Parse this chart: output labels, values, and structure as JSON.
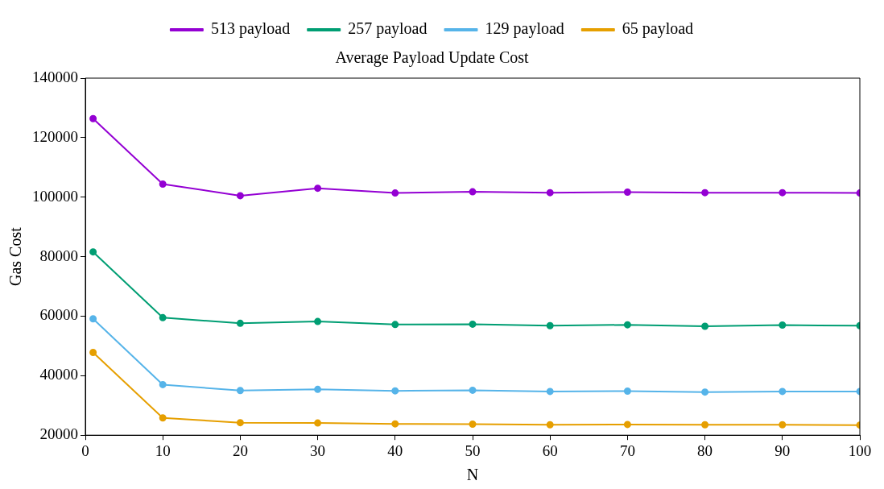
{
  "chart_data": {
    "type": "line",
    "title": "Average Payload Update Cost",
    "xlabel": "N",
    "ylabel": "Gas Cost",
    "x": [
      1,
      10,
      20,
      30,
      40,
      50,
      60,
      70,
      80,
      90,
      100
    ],
    "series": [
      {
        "name": "513 payload",
        "color": "#9400d3",
        "values": [
          126400,
          104400,
          100500,
          103000,
          101400,
          101800,
          101500,
          101700,
          101500,
          101500,
          101400
        ]
      },
      {
        "name": "257 payload",
        "color": "#009e73",
        "values": [
          81600,
          59500,
          57600,
          58200,
          57200,
          57300,
          56800,
          57100,
          56600,
          57000,
          56800
        ]
      },
      {
        "name": "129 payload",
        "color": "#56b4e9",
        "values": [
          59100,
          37000,
          35000,
          35400,
          34900,
          35100,
          34700,
          34800,
          34500,
          34700,
          34700
        ]
      },
      {
        "name": "65 payload",
        "color": "#e69f00",
        "values": [
          47800,
          25800,
          24200,
          24100,
          23800,
          23700,
          23500,
          23600,
          23500,
          23500,
          23400
        ]
      }
    ],
    "xlim": [
      0,
      100
    ],
    "xticks": [
      0,
      10,
      20,
      30,
      40,
      50,
      60,
      70,
      80,
      90,
      100
    ],
    "ylim": [
      20000,
      140000
    ],
    "yticks": [
      20000,
      40000,
      60000,
      80000,
      100000,
      120000,
      140000
    ],
    "grid": false,
    "legend": "top",
    "marker": "circle",
    "line_style": "solid"
  }
}
